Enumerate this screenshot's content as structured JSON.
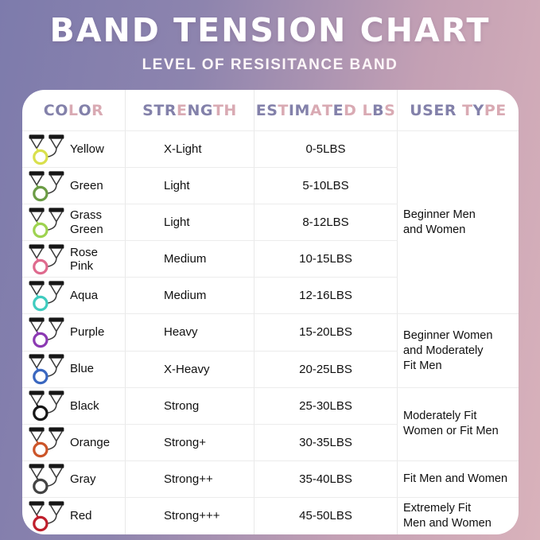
{
  "header": {
    "title": "BAND TENSION CHART",
    "subtitle": "LEVEL OF RESISITANCE BAND"
  },
  "chart_data": {
    "type": "table",
    "title": "BAND TENSION CHART",
    "subtitle": "LEVEL OF RESISITANCE BAND",
    "columns": [
      "COLOR",
      "STRENGTH",
      "ESTIMATED LBS",
      "USER TYPE"
    ],
    "rows": [
      {
        "color": "Yellow",
        "display_color": "Yellow",
        "band_hex": "#d9e04d",
        "strength": "X-Light",
        "estimated_lbs": "0-5LBS",
        "user_type": "Beginner Men and Women"
      },
      {
        "color": "Green",
        "display_color": "Green",
        "band_hex": "#6b9c45",
        "strength": "Light",
        "estimated_lbs": "5-10LBS",
        "user_type": "Beginner Men and Women"
      },
      {
        "color": "Grass Green",
        "display_color": "Grass\nGreen",
        "band_hex": "#9ed350",
        "strength": "Light",
        "estimated_lbs": "8-12LBS",
        "user_type": "Beginner Men and Women"
      },
      {
        "color": "Rose Pink",
        "display_color": "Rose\nPink",
        "band_hex": "#df6a8e",
        "strength": "Medium",
        "estimated_lbs": "10-15LBS",
        "user_type": "Beginner Men and Women"
      },
      {
        "color": "Aqua",
        "display_color": "Aqua",
        "band_hex": "#3fccbf",
        "strength": "Medium",
        "estimated_lbs": "12-16LBS",
        "user_type": "Beginner Men and Women"
      },
      {
        "color": "Purple",
        "display_color": "Purple",
        "band_hex": "#8c3ab3",
        "strength": "Heavy",
        "estimated_lbs": "15-20LBS",
        "user_type": "Beginner Women and Moderately Fit Men"
      },
      {
        "color": "Blue",
        "display_color": "Blue",
        "band_hex": "#3a67c0",
        "strength": "X-Heavy",
        "estimated_lbs": "20-25LBS",
        "user_type": "Beginner Women and Moderately Fit Men"
      },
      {
        "color": "Black",
        "display_color": "Black",
        "band_hex": "#161616",
        "strength": "Strong",
        "estimated_lbs": "25-30LBS",
        "user_type": "Moderately Fit Women or Fit Men"
      },
      {
        "color": "Orange",
        "display_color": "Orange",
        "band_hex": "#cc5529",
        "strength": "Strong+",
        "estimated_lbs": "30-35LBS",
        "user_type": "Moderately Fit Women or Fit Men"
      },
      {
        "color": "Gray",
        "display_color": "Gray",
        "band_hex": "#434343",
        "strength": "Strong++",
        "estimated_lbs": "35-40LBS",
        "user_type": "Fit Men and Women"
      },
      {
        "color": "Red",
        "display_color": "Red",
        "band_hex": "#bf1f2c",
        "strength": "Strong+++",
        "estimated_lbs": "45-50LBS",
        "user_type": "Extremely Fit Men and Women"
      }
    ],
    "user_type_groups": [
      {
        "label": "Beginner Men\nand Women",
        "row_span": 5
      },
      {
        "label": "Beginner Women\nand Moderately\nFit Men",
        "row_span": 2
      },
      {
        "label": "Moderately Fit\nWomen or Fit Men",
        "row_span": 2
      },
      {
        "label": "Fit Men and Women",
        "row_span": 1
      },
      {
        "label": "Extremely Fit\nMen and Women",
        "row_span": 1
      }
    ]
  },
  "icons": {
    "row_icon": "resistance-band-icon"
  },
  "colors": {
    "background_left": "#7d7bac",
    "background_right": "#d9b2bb",
    "card": "#ffffff",
    "header_letter_purple": "#8381aa",
    "header_letter_pink": "#d9aab3",
    "grid_line": "#e9e9e9",
    "body_text": "#101010",
    "title_text": "#ffffff"
  }
}
